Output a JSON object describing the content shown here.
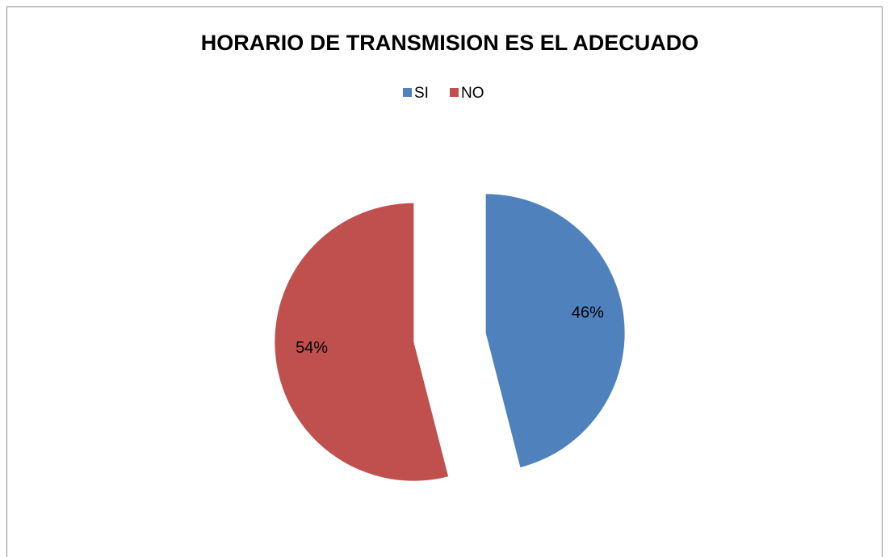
{
  "chart_data": {
    "type": "pie",
    "title": "HORARIO DE TRANSMISION ES EL ADECUADO",
    "categories": [
      "SI",
      "NO"
    ],
    "values": [
      46,
      54
    ],
    "value_labels": [
      "46%",
      "54%"
    ],
    "colors": [
      "#4f81bd",
      "#c0504d"
    ],
    "legend": "top",
    "exploded": true
  }
}
